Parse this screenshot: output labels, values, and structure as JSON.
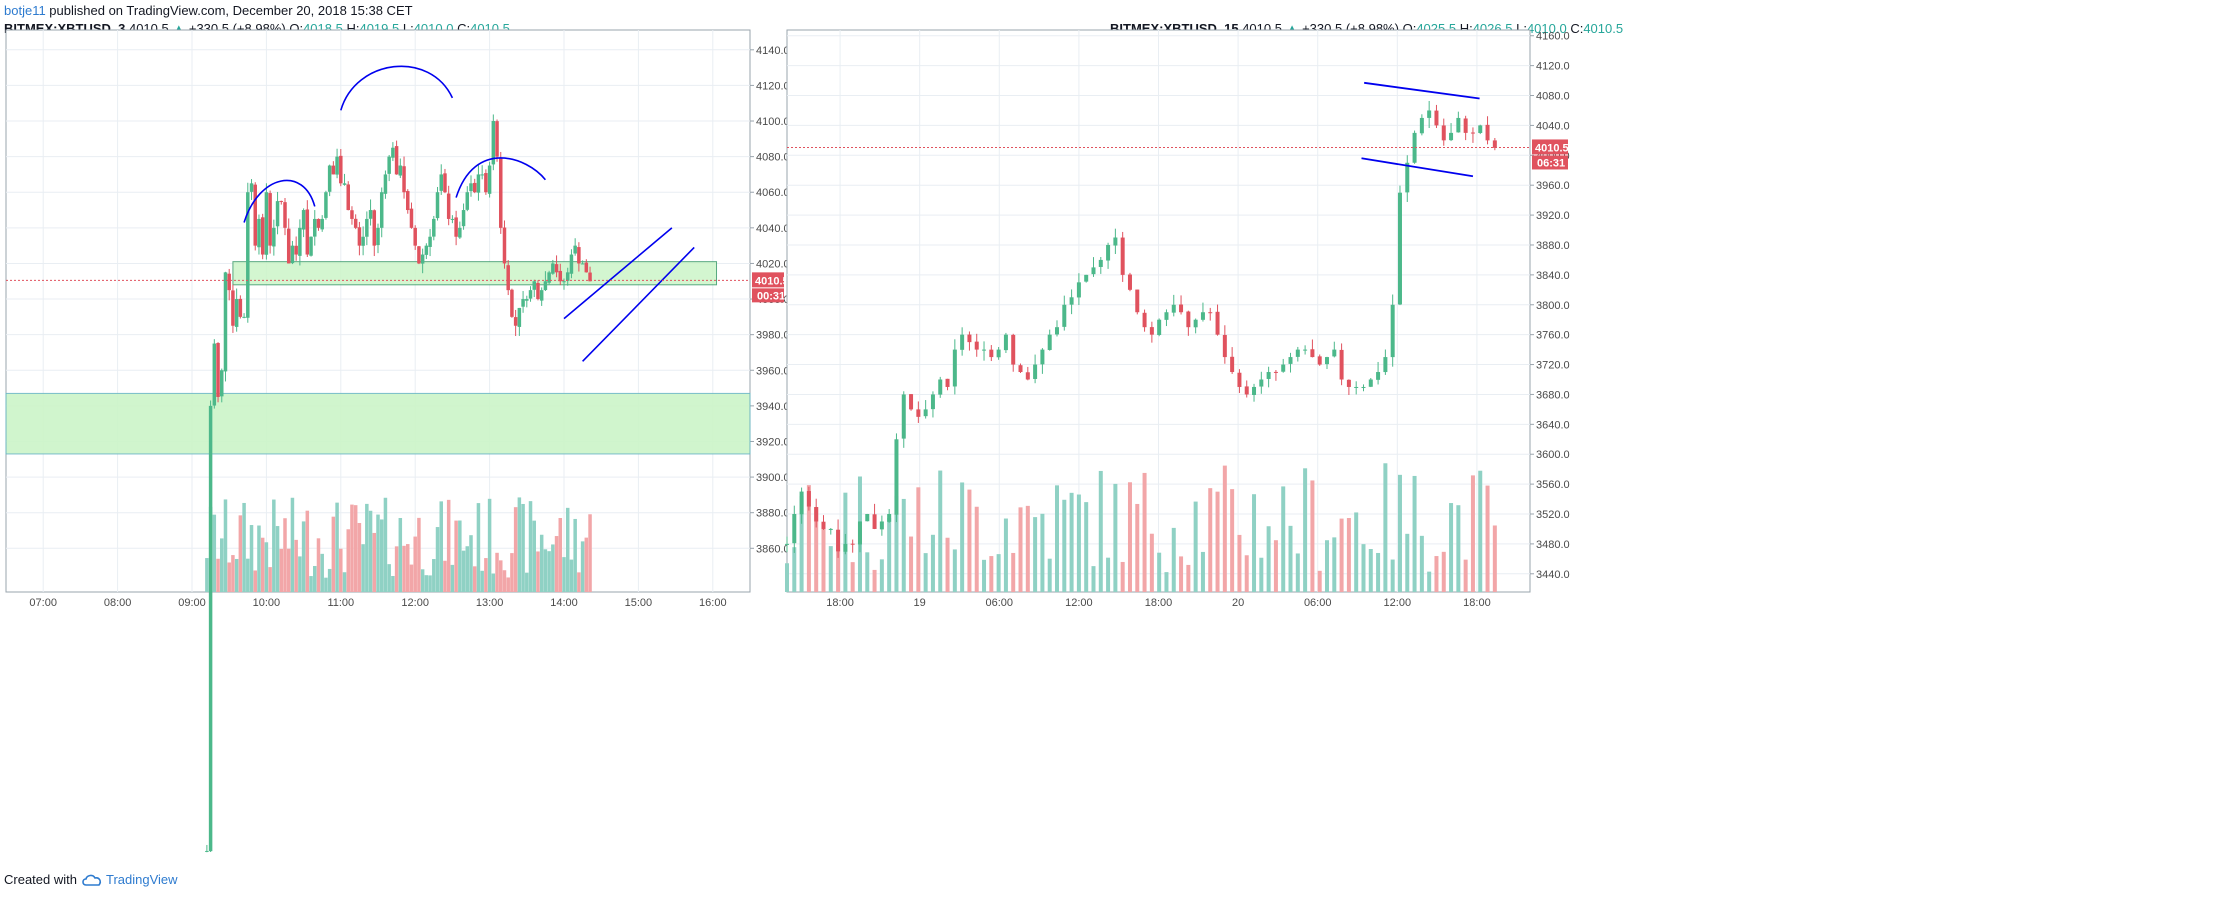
{
  "header": {
    "user": "botje11",
    "published_text": " published on TradingView.com, December 20, 2018 15:38 CET"
  },
  "footer": {
    "created_with": "Created with",
    "brand": "TradingView"
  },
  "colors": {
    "up": "#4cb88a",
    "down": "#e0525e",
    "vol_up": "#8fd1c4",
    "vol_down": "#f2a6a8",
    "zone_fill": "#ccf5c8",
    "zone_border": "#6ab7c4",
    "drawing": "#0000ee",
    "price_line": "#e0525e",
    "grid": "#e9eef3"
  },
  "panels": [
    {
      "symbol": "BITMEX:XBTUSD, 3",
      "last": "4010.5",
      "arrow": "▲",
      "change": "+330.5 (+8.98%)",
      "o_label": "O:",
      "o": "4018.5",
      "h_label": "H:",
      "h": "4019.5",
      "l_label": "L:",
      "l": "4010.0",
      "c_label": "C:",
      "c": "4010.5",
      "price_tag": "4010.5",
      "countdown": "00:31"
    },
    {
      "symbol": "BITMEX:XBTUSD, 15",
      "last": "4010.5",
      "arrow": "▲",
      "change": "+330.5 (+8.98%)",
      "o_label": "O:",
      "o": "4025.5",
      "h_label": "H:",
      "h": "4026.5",
      "l_label": "L:",
      "l": "4010.0",
      "c_label": "C:",
      "c": "4010.5",
      "price_tag": "4010.5",
      "countdown": "06:31"
    }
  ],
  "chart_data": [
    {
      "type": "candlestick",
      "symbol": "BITMEX:XBTUSD",
      "interval": "3",
      "ylim": [
        3845,
        4150
      ],
      "y_ticks": [
        "4140.0",
        "4120.0",
        "4100.0",
        "4080.0",
        "4060.0",
        "4040.0",
        "4020.0",
        "4000.0",
        "3980.0",
        "3960.0",
        "3940.0",
        "3920.0",
        "3900.0",
        "3880.0",
        "3860.0"
      ],
      "y_tick_values": [
        4140,
        4120,
        4100,
        4080,
        4060,
        4040,
        4020,
        4000,
        3980,
        3960,
        3940,
        3920,
        3900,
        3880,
        3860
      ],
      "x_ticks": [
        "07:00",
        "08:00",
        "09:00",
        "10:00",
        "11:00",
        "12:00",
        "13:00",
        "14:00",
        "15:00",
        "16:00"
      ],
      "x_tick_hours": [
        7,
        8,
        9,
        10,
        11,
        12,
        13,
        14,
        15,
        16
      ],
      "x_range_hours": [
        6.5,
        16.5
      ],
      "grid": true,
      "last_price": 4010.5,
      "segments_interval_hours": 0.05,
      "segments": [
        {
          "start_hour": 6.5,
          "points": [
            3680,
            3680
          ]
        },
        {
          "start_hour": 9.2,
          "points": [
            3690,
            3940,
            3975,
            3945,
            3960,
            4015,
            4005,
            3985,
            4000,
            3990,
            3990,
            4060,
            4065,
            4030,
            4045,
            4025,
            4060,
            4030,
            4040,
            4055
          ]
        },
        {
          "start_hour": 10.2,
          "points": [
            4055,
            4040,
            4020,
            4030,
            4025,
            4040,
            4050,
            4025,
            4035,
            4045,
            4040,
            4045,
            4060,
            4075,
            4070,
            4080,
            4065,
            4065,
            4050,
            4045,
            4040,
            4030,
            4035,
            4045,
            4050,
            4030,
            4040,
            4060,
            4070,
            4080,
            4085,
            4070,
            4075,
            4060,
            4050,
            4040,
            4030,
            4020,
            4025,
            4030,
            4035,
            4045,
            4060,
            4070,
            4060,
            4045,
            4045,
            4035,
            4040,
            4050,
            4060,
            4065,
            4060,
            4070,
            4070,
            4060,
            4075,
            4100,
            4080,
            4040,
            4020,
            4005,
            3990,
            3985,
            3995,
            4000,
            4000,
            4005,
            4010,
            4000,
            4005,
            4010,
            4015,
            4020,
            4015,
            4010,
            4010,
            4015,
            4025,
            4030,
            4020,
            4020,
            4015,
            4010
          ]
        }
      ],
      "volume_scale": [
        0,
        100
      ]
    },
    {
      "type": "candlestick",
      "symbol": "BITMEX:XBTUSD",
      "interval": "15",
      "ylim": [
        3425,
        4165
      ],
      "y_ticks": [
        "4160.0",
        "4120.0",
        "4080.0",
        "4040.0",
        "4000.0",
        "3960.0",
        "3920.0",
        "3880.0",
        "3840.0",
        "3800.0",
        "3760.0",
        "3720.0",
        "3680.0",
        "3640.0",
        "3600.0",
        "3560.0",
        "3520.0",
        "3480.0",
        "3440.0"
      ],
      "y_tick_values": [
        4160,
        4120,
        4080,
        4040,
        4000,
        3960,
        3920,
        3880,
        3840,
        3800,
        3760,
        3720,
        3680,
        3640,
        3600,
        3560,
        3520,
        3480,
        3440
      ],
      "x_ticks": [
        "18:00",
        "19",
        "06:00",
        "12:00",
        "18:00",
        "20",
        "06:00",
        "12:00",
        "18:00"
      ],
      "x_tick_hours": [
        18,
        24,
        30,
        36,
        42,
        48,
        54,
        60,
        66
      ],
      "x_range_hours": [
        14,
        70
      ],
      "grid": true,
      "last_price": 4010.5,
      "segment_start_hour": 14,
      "segment_interval_hours": 0.25,
      "closes": [
        3480,
        3520,
        3550,
        3530,
        3510,
        3500,
        3500,
        3470,
        3480,
        3480,
        3510,
        3520,
        3500,
        3510,
        3520,
        3620,
        3680,
        3660,
        3650,
        3660,
        3680,
        3700,
        3690,
        3740,
        3760,
        3750,
        3740,
        3740,
        3730,
        3740,
        3760,
        3720,
        3710,
        3700,
        3720,
        3740,
        3760,
        3770,
        3800,
        3810,
        3830,
        3840,
        3850,
        3860,
        3880,
        3890,
        3840,
        3820,
        3790,
        3770,
        3760,
        3780,
        3790,
        3800,
        3790,
        3770,
        3780,
        3790,
        3790,
        3760,
        3730,
        3710,
        3690,
        3680,
        3690,
        3700,
        3710,
        3710,
        3720,
        3730,
        3740,
        3740,
        3730,
        3720,
        3730,
        3740,
        3700,
        3690,
        3690,
        3690,
        3700,
        3710,
        3730,
        3800,
        3950,
        3990,
        4030,
        4050,
        4060,
        4040,
        4020,
        4030,
        4050,
        4030,
        4030,
        4040,
        4020,
        4010
      ]
    }
  ]
}
